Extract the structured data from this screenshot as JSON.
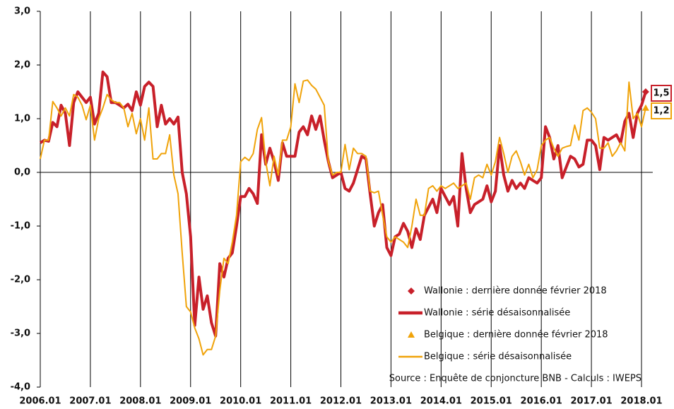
{
  "chart_data": {
    "type": "line",
    "categories": [
      "2006.01",
      null,
      null,
      null,
      null,
      null,
      null,
      null,
      null,
      null,
      null,
      null,
      "2007.01",
      null,
      null,
      null,
      null,
      null,
      null,
      null,
      null,
      null,
      null,
      null,
      "2008.01",
      null,
      null,
      null,
      null,
      null,
      null,
      null,
      null,
      null,
      null,
      null,
      "2009.01",
      null,
      null,
      null,
      null,
      null,
      null,
      null,
      null,
      null,
      null,
      null,
      "2010.01",
      null,
      null,
      null,
      null,
      null,
      null,
      null,
      null,
      null,
      null,
      null,
      "2011.01",
      null,
      null,
      null,
      null,
      null,
      null,
      null,
      null,
      null,
      null,
      null,
      "2012.01",
      null,
      null,
      null,
      null,
      null,
      null,
      null,
      null,
      null,
      null,
      null,
      "2013.01",
      null,
      null,
      null,
      null,
      null,
      null,
      null,
      null,
      null,
      null,
      null,
      "2014.01",
      null,
      null,
      null,
      null,
      null,
      null,
      null,
      null,
      null,
      null,
      null,
      "2015.01",
      null,
      null,
      null,
      null,
      null,
      null,
      null,
      null,
      null,
      null,
      null,
      "2016.01",
      null,
      null,
      null,
      null,
      null,
      null,
      null,
      null,
      null,
      null,
      null,
      "2017.01",
      null,
      null,
      null,
      null,
      null,
      null,
      null,
      null,
      null,
      null,
      null,
      "2018.01",
      null
    ],
    "series": [
      {
        "name": "Wallonie : série désaisonnalisée",
        "color": "#c8202a",
        "width": 4,
        "values": [
          0.55,
          0.6,
          0.58,
          0.93,
          0.85,
          1.25,
          1.1,
          0.5,
          1.3,
          1.5,
          1.4,
          1.3,
          1.4,
          0.9,
          1.1,
          1.87,
          1.78,
          1.3,
          1.3,
          1.25,
          1.2,
          1.27,
          1.15,
          1.5,
          1.25,
          1.6,
          1.68,
          1.6,
          0.85,
          1.25,
          0.9,
          1.0,
          0.9,
          1.03,
          0.0,
          -0.4,
          -1.2,
          -2.85,
          -1.95,
          -2.55,
          -2.3,
          -2.8,
          -3.05,
          -1.7,
          -1.95,
          -1.6,
          -1.5,
          -1.0,
          -0.45,
          -0.45,
          -0.3,
          -0.4,
          -0.58,
          0.7,
          0.15,
          0.45,
          0.2,
          -0.15,
          0.55,
          0.3,
          0.3,
          0.3,
          0.75,
          0.85,
          0.7,
          1.05,
          0.8,
          1.05,
          0.6,
          0.2,
          -0.1,
          -0.05,
          0.0,
          -0.3,
          -0.35,
          -0.2,
          0.05,
          0.3,
          0.25,
          -0.4,
          -1.0,
          -0.75,
          -0.6,
          -1.4,
          -1.55,
          -1.2,
          -1.15,
          -0.95,
          -1.1,
          -1.4,
          -1.05,
          -1.25,
          -0.8,
          -0.65,
          -0.5,
          -0.75,
          -0.3,
          -0.45,
          -0.6,
          -0.45,
          -1.0,
          0.35,
          -0.3,
          -0.75,
          -0.6,
          -0.55,
          -0.5,
          -0.25,
          -0.55,
          -0.35,
          0.5,
          -0.05,
          -0.35,
          -0.15,
          -0.3,
          -0.2,
          -0.3,
          -0.1,
          -0.15,
          -0.2,
          -0.1,
          0.85,
          0.65,
          0.25,
          0.5,
          -0.1,
          0.1,
          0.3,
          0.25,
          0.1,
          0.15,
          0.6,
          0.6,
          0.5,
          0.05,
          0.65,
          0.6,
          0.65,
          0.7,
          0.55,
          0.95,
          1.1,
          0.65,
          1.1,
          1.25,
          1.5
        ]
      },
      {
        "name": "Belgique : série désaisonnalisée",
        "color": "#f0a30a",
        "width": 2,
        "values": [
          0.25,
          0.6,
          0.6,
          1.32,
          1.2,
          1.05,
          1.2,
          1.05,
          1.45,
          1.4,
          1.25,
          0.98,
          1.25,
          0.6,
          1.0,
          1.2,
          1.45,
          1.35,
          1.3,
          1.3,
          1.2,
          0.85,
          1.1,
          0.72,
          1.0,
          0.6,
          1.2,
          0.25,
          0.25,
          0.35,
          0.35,
          0.7,
          -0.05,
          -0.4,
          -1.5,
          -2.5,
          -2.6,
          -2.9,
          -3.1,
          -3.4,
          -3.3,
          -3.3,
          -3.05,
          -2.2,
          -1.6,
          -1.7,
          -1.3,
          -0.8,
          0.2,
          0.28,
          0.22,
          0.35,
          0.8,
          1.02,
          0.2,
          -0.25,
          0.3,
          -0.05,
          0.6,
          0.6,
          0.85,
          1.65,
          1.3,
          1.7,
          1.72,
          1.62,
          1.55,
          1.4,
          1.25,
          0.2,
          -0.05,
          0.0,
          0.0,
          0.52,
          0.05,
          0.45,
          0.35,
          0.35,
          0.3,
          -0.35,
          -0.38,
          -0.35,
          -0.8,
          -1.2,
          -1.3,
          -1.2,
          -1.25,
          -1.3,
          -1.4,
          -1.0,
          -0.5,
          -0.8,
          -0.8,
          -0.3,
          -0.25,
          -0.35,
          -0.25,
          -0.3,
          -0.25,
          -0.2,
          -0.3,
          -0.25,
          -0.2,
          -0.5,
          -0.1,
          -0.05,
          -0.1,
          0.15,
          -0.05,
          0.2,
          0.65,
          0.35,
          0.0,
          0.3,
          0.4,
          0.2,
          -0.05,
          0.15,
          -0.1,
          0.05,
          0.5,
          0.6,
          0.65,
          0.45,
          0.3,
          0.45,
          0.48,
          0.5,
          0.88,
          0.6,
          1.15,
          1.2,
          1.12,
          1.0,
          0.45,
          0.45,
          0.55,
          0.3,
          0.4,
          0.55,
          0.4,
          1.68,
          1.0,
          1.1,
          0.85,
          1.2
        ]
      }
    ],
    "last_points": [
      {
        "name": "Wallonie : dernière donnée février 2018",
        "color": "#c8202a",
        "marker": "diamond",
        "value": 1.5,
        "value_label": "1,5"
      },
      {
        "name": "Belgique : dernière donnée février 2018",
        "color": "#f0a30a",
        "marker": "triangle",
        "value": 1.2,
        "value_label": "1,2"
      }
    ],
    "source": "Source : Enquête de conjoncture BNB - Calculs : IWEPS",
    "ylim": [
      -4,
      3
    ],
    "yticks": [
      {
        "value": -4,
        "label": "-4,0"
      },
      {
        "value": -3,
        "label": "-3,0"
      },
      {
        "value": -2,
        "label": "-2,0"
      },
      {
        "value": -1,
        "label": "-1,0"
      },
      {
        "value": 0,
        "label": "0,0"
      },
      {
        "value": 1,
        "label": "1,0"
      },
      {
        "value": 2,
        "label": "2,0"
      },
      {
        "value": 3,
        "label": "3,0"
      }
    ]
  }
}
